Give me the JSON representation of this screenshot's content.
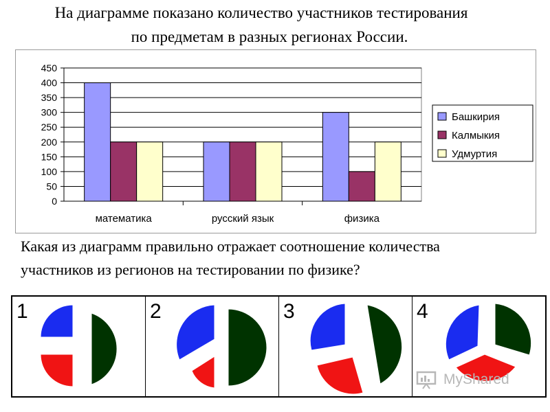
{
  "title": {
    "line1": "На диаграмме показано количество участников тестирования",
    "line2": "по предметам в разных регионах России."
  },
  "question": {
    "line1": "Какая из диаграмм правильно отражает соотношение количества",
    "line2": "участников  из регионов на тестировании по физике?"
  },
  "chart_data": {
    "type": "bar",
    "categories": [
      "математика",
      "русский язык",
      "физика"
    ],
    "series": [
      {
        "name": "Башкирия",
        "values": [
          400,
          200,
          300
        ],
        "color": "#9999ff"
      },
      {
        "name": "Калмыкия",
        "values": [
          200,
          200,
          100
        ],
        "color": "#993366"
      },
      {
        "name": "Удмуртия",
        "values": [
          200,
          200,
          200
        ],
        "color": "#ffffcc"
      }
    ],
    "ylim": [
      0,
      450
    ],
    "yticks": [
      0,
      50,
      100,
      150,
      200,
      250,
      300,
      350,
      400,
      450
    ],
    "grid": true,
    "legend": "right"
  },
  "options": [
    {
      "number": "1",
      "icon": "pie-option-1-icon"
    },
    {
      "number": "2",
      "icon": "pie-option-2-icon"
    },
    {
      "number": "3",
      "icon": "pie-option-3-icon"
    },
    {
      "number": "4",
      "icon": "pie-option-4-icon"
    }
  ],
  "pie_colors": {
    "blue": "#1a2cf0",
    "red": "#f01414",
    "green": "#003300"
  },
  "watermark": "MyShared"
}
